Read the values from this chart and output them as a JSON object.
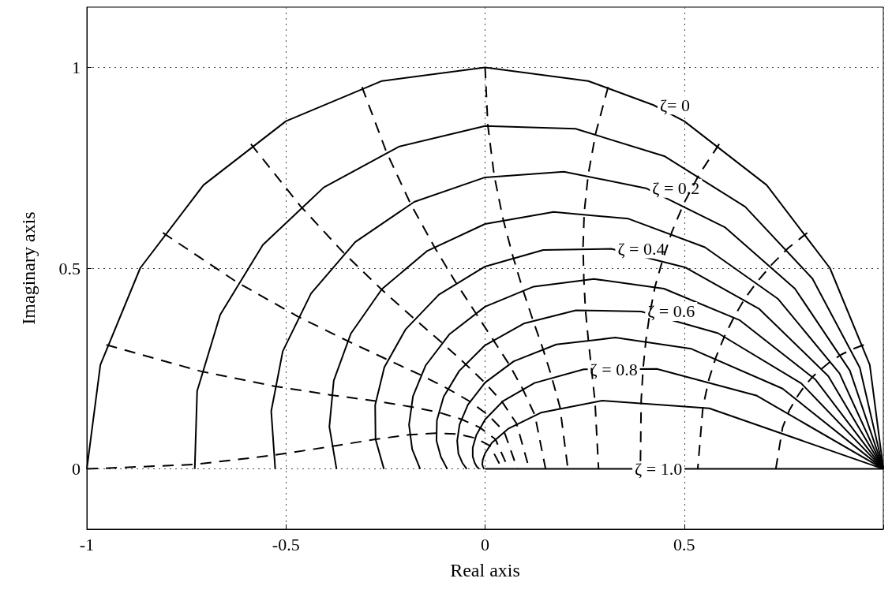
{
  "chart_data": {
    "type": "line",
    "xlabel": "Real axis",
    "ylabel": "Imaginary axis",
    "xlim": [
      -1,
      1
    ],
    "ylim": [
      -0.15,
      1.15
    ],
    "xticks": [
      -1,
      -0.5,
      0,
      0.5,
      {
        "value": 1,
        "label": null
      }
    ],
    "yticks": [
      0,
      0.5,
      1
    ],
    "grid": true,
    "line_style": "solid",
    "annotations": [
      {
        "text": "ζ= 0",
        "x": 0.423,
        "y": 0.906
      },
      {
        "text": "ζ = 0.2",
        "x": 0.404,
        "y": 0.699
      },
      {
        "text": "ζ = 0.4",
        "x": 0.317,
        "y": 0.548
      },
      {
        "text": "ζ = 0.6",
        "x": 0.392,
        "y": 0.392
      },
      {
        "text": "ζ = 0.8",
        "x": 0.248,
        "y": 0.248
      },
      {
        "text": "ζ = 1.0",
        "x": 0.36,
        "y": 0
      }
    ],
    "series": [
      {
        "color": "#000000",
        "x": [
          1,
          0.966,
          0.866,
          0.707,
          0.5,
          0.423,
          0.259,
          0,
          -0.259,
          -0.5,
          -0.707,
          -0.866,
          -0.966,
          -1
        ],
        "values": [
          0,
          0.259,
          0.5,
          0.707,
          0.866,
          0.906,
          0.966,
          1,
          0.966,
          0.866,
          0.707,
          0.5,
          0.259,
          0
        ]
      },
      {
        "color": "#000000",
        "x": [
          1,
          0.941,
          0.822,
          0.653,
          0.45,
          0.227,
          0,
          -0.215,
          -0.405,
          -0.558,
          -0.665,
          -0.723,
          -0.729
        ],
        "values": [
          0,
          0.252,
          0.474,
          0.653,
          0.779,
          0.847,
          0.854,
          0.803,
          0.701,
          0.558,
          0.384,
          0.194,
          0
        ]
      },
      {
        "color": "#000000",
        "x": [
          1,
          0.916,
          0.778,
          0.602,
          0.404,
          0.198,
          0,
          -0.178,
          -0.326,
          -0.437,
          -0.508,
          -0.537,
          -0.527
        ],
        "values": [
          0,
          0.245,
          0.449,
          0.602,
          0.699,
          0.74,
          0.726,
          0.665,
          0.565,
          0.437,
          0.293,
          0.144,
          0
        ]
      },
      {
        "color": "#000000",
        "x": [
          1,
          0.89,
          0.735,
          0.552,
          0.36,
          0.172,
          0,
          -0.145,
          -0.259,
          -0.337,
          -0.38,
          -0.391,
          -0.373
        ],
        "values": [
          0,
          0.238,
          0.424,
          0.552,
          0.623,
          0.64,
          0.61,
          0.543,
          0.448,
          0.337,
          0.22,
          0.105,
          0
        ]
      },
      {
        "color": "#000000",
        "x": [
          1,
          0.862,
          0.689,
          0.502,
          0.317,
          0.146,
          0,
          -0.116,
          -0.2,
          -0.253,
          -0.276,
          -0.275,
          -0.254
        ],
        "values": [
          0,
          0.231,
          0.398,
          0.502,
          0.548,
          0.545,
          0.504,
          0.434,
          0.347,
          0.253,
          0.159,
          0.074,
          0
        ]
      },
      {
        "color": "#000000",
        "x": [
          1,
          0.83,
          0.64,
          0.449,
          0.273,
          0.122,
          0,
          -0.09,
          -0.149,
          -0.181,
          -0.191,
          -0.183,
          -0.163
        ],
        "values": [
          0,
          0.222,
          0.37,
          0.449,
          0.473,
          0.454,
          0.404,
          0.335,
          0.258,
          0.181,
          0.11,
          0.049,
          0
        ]
      },
      {
        "color": "#000000",
        "x": [
          1,
          0.794,
          0.585,
          0.392,
          0.228,
          0.097,
          0,
          -0.065,
          -0.104,
          -0.121,
          -0.122,
          -0.111,
          -0.095
        ],
        "values": [
          0,
          0.213,
          0.338,
          0.392,
          0.395,
          0.362,
          0.308,
          0.244,
          0.18,
          0.121,
          0.07,
          0.03,
          0
        ]
      },
      {
        "color": "#000000",
        "x": [
          1,
          0.747,
          0.518,
          0.327,
          0.179,
          0.072,
          0,
          -0.043,
          -0.064,
          -0.07,
          -0.067,
          -0.057,
          -0.046
        ],
        "values": [
          0,
          0.2,
          0.299,
          0.327,
          0.31,
          0.268,
          0.215,
          0.16,
          0.111,
          0.07,
          0.038,
          0.015,
          0
        ]
      },
      {
        "color": "#000000",
        "x": [
          1,
          0.681,
          0.431,
          0.248,
          0.124,
          0.045,
          0,
          -0.022,
          -0.031,
          -0.031,
          -0.026,
          -0.021,
          -0.015
        ],
        "values": [
          0,
          0.183,
          0.249,
          0.248,
          0.214,
          0.169,
          0.123,
          0.084,
          0.053,
          0.031,
          0.015,
          0.006,
          0
        ]
      },
      {
        "color": "#000000",
        "x": [
          1,
          0.563,
          0.294,
          0.14,
          0.058,
          0.017,
          0,
          -0.006,
          -0.007,
          -0.005,
          -0.003,
          -0.003,
          -0.002
        ],
        "values": [
          0,
          0.151,
          0.17,
          0.14,
          0.1,
          0.065,
          0.039,
          0.022,
          0.011,
          0.005,
          0.001,
          0.001,
          0
        ]
      },
      {
        "color": "#000000",
        "x": [
          0,
          0.36,
          1
        ],
        "values": [
          0,
          0,
          0
        ]
      },
      {
        "color": "#000000",
        "line_style": "dashed",
        "x": [
          0.951,
          0.922,
          0.895,
          0.869,
          0.846,
          0.823,
          0.802,
          0.783,
          0.764,
          0.747,
          0.73
        ],
        "values": [
          0.309,
          0.298,
          0.285,
          0.269,
          0.25,
          0.23,
          0.206,
          0.179,
          0.146,
          0.103,
          0
        ]
      },
      {
        "color": "#000000",
        "line_style": "dashed",
        "x": [
          0.809,
          0.761,
          0.72,
          0.684,
          0.652,
          0.625,
          0.601,
          0.58,
          0.562,
          0.547,
          0.534
        ],
        "values": [
          0.588,
          0.55,
          0.509,
          0.467,
          0.424,
          0.378,
          0.33,
          0.279,
          0.223,
          0.154,
          0
        ]
      },
      {
        "color": "#000000",
        "line_style": "dashed",
        "x": [
          0.588,
          0.538,
          0.499,
          0.469,
          0.446,
          0.427,
          0.414,
          0.404,
          0.397,
          0.392,
          0.39
        ],
        "values": [
          0.809,
          0.734,
          0.661,
          0.59,
          0.521,
          0.455,
          0.389,
          0.322,
          0.252,
          0.171,
          0
        ]
      },
      {
        "color": "#000000",
        "line_style": "dashed",
        "x": [
          0.309,
          0.278,
          0.259,
          0.249,
          0.246,
          0.248,
          0.252,
          0.259,
          0.267,
          0.276,
          0.285
        ],
        "values": [
          0.951,
          0.837,
          0.733,
          0.639,
          0.553,
          0.473,
          0.397,
          0.324,
          0.251,
          0.168,
          0
        ]
      },
      {
        "color": "#000000",
        "line_style": "dashed",
        "x": [
          0,
          0.007,
          0.023,
          0.045,
          0.07,
          0.095,
          0.12,
          0.145,
          0.167,
          0.188,
          0.208
        ],
        "values": [
          1,
          0.855,
          0.73,
          0.623,
          0.529,
          0.446,
          0.371,
          0.3,
          0.23,
          0.154,
          0
        ]
      },
      {
        "color": "#000000",
        "line_style": "dashed",
        "x": [
          -0.309,
          -0.248,
          -0.187,
          -0.128,
          -0.074,
          -0.024,
          0.02,
          0.06,
          0.094,
          0.125,
          0.152
        ],
        "values": [
          0.951,
          0.79,
          0.66,
          0.554,
          0.465,
          0.389,
          0.322,
          0.261,
          0.2,
          0.134,
          0
        ]
      },
      {
        "color": "#000000",
        "line_style": "dashed",
        "x": [
          -0.588,
          -0.464,
          -0.355,
          -0.26,
          -0.179,
          -0.109,
          -0.05,
          0,
          0.043,
          0.079,
          0.111
        ],
        "values": [
          0.809,
          0.655,
          0.538,
          0.447,
          0.375,
          0.315,
          0.262,
          0.214,
          0.167,
          0.113,
          0
        ]
      },
      {
        "color": "#000000",
        "line_style": "dashed",
        "x": [
          -0.809,
          -0.623,
          -0.471,
          -0.346,
          -0.245,
          -0.162,
          -0.094,
          -0.038,
          0.008,
          0.048,
          0.081
        ],
        "values": [
          0.588,
          0.465,
          0.38,
          0.319,
          0.272,
          0.234,
          0.2,
          0.168,
          0.134,
          0.093,
          0
        ]
      },
      {
        "color": "#000000",
        "line_style": "dashed",
        "x": [
          -0.951,
          -0.713,
          -0.529,
          -0.387,
          -0.275,
          -0.187,
          -0.117,
          -0.06,
          -0.013,
          0.026,
          0.059
        ],
        "values": [
          0.309,
          0.243,
          0.206,
          0.184,
          0.169,
          0.155,
          0.141,
          0.124,
          0.103,
          0.074,
          0
        ]
      },
      {
        "color": "#000000",
        "line_style": "dashed",
        "x": [
          -1,
          -0.73,
          -0.532,
          -0.386,
          -0.275,
          -0.19,
          -0.123,
          -0.069,
          -0.025,
          0.012,
          0.043
        ],
        "values": [
          0,
          0.011,
          0.034,
          0.056,
          0.074,
          0.085,
          0.089,
          0.087,
          0.077,
          0.058,
          0
        ]
      }
    ]
  }
}
